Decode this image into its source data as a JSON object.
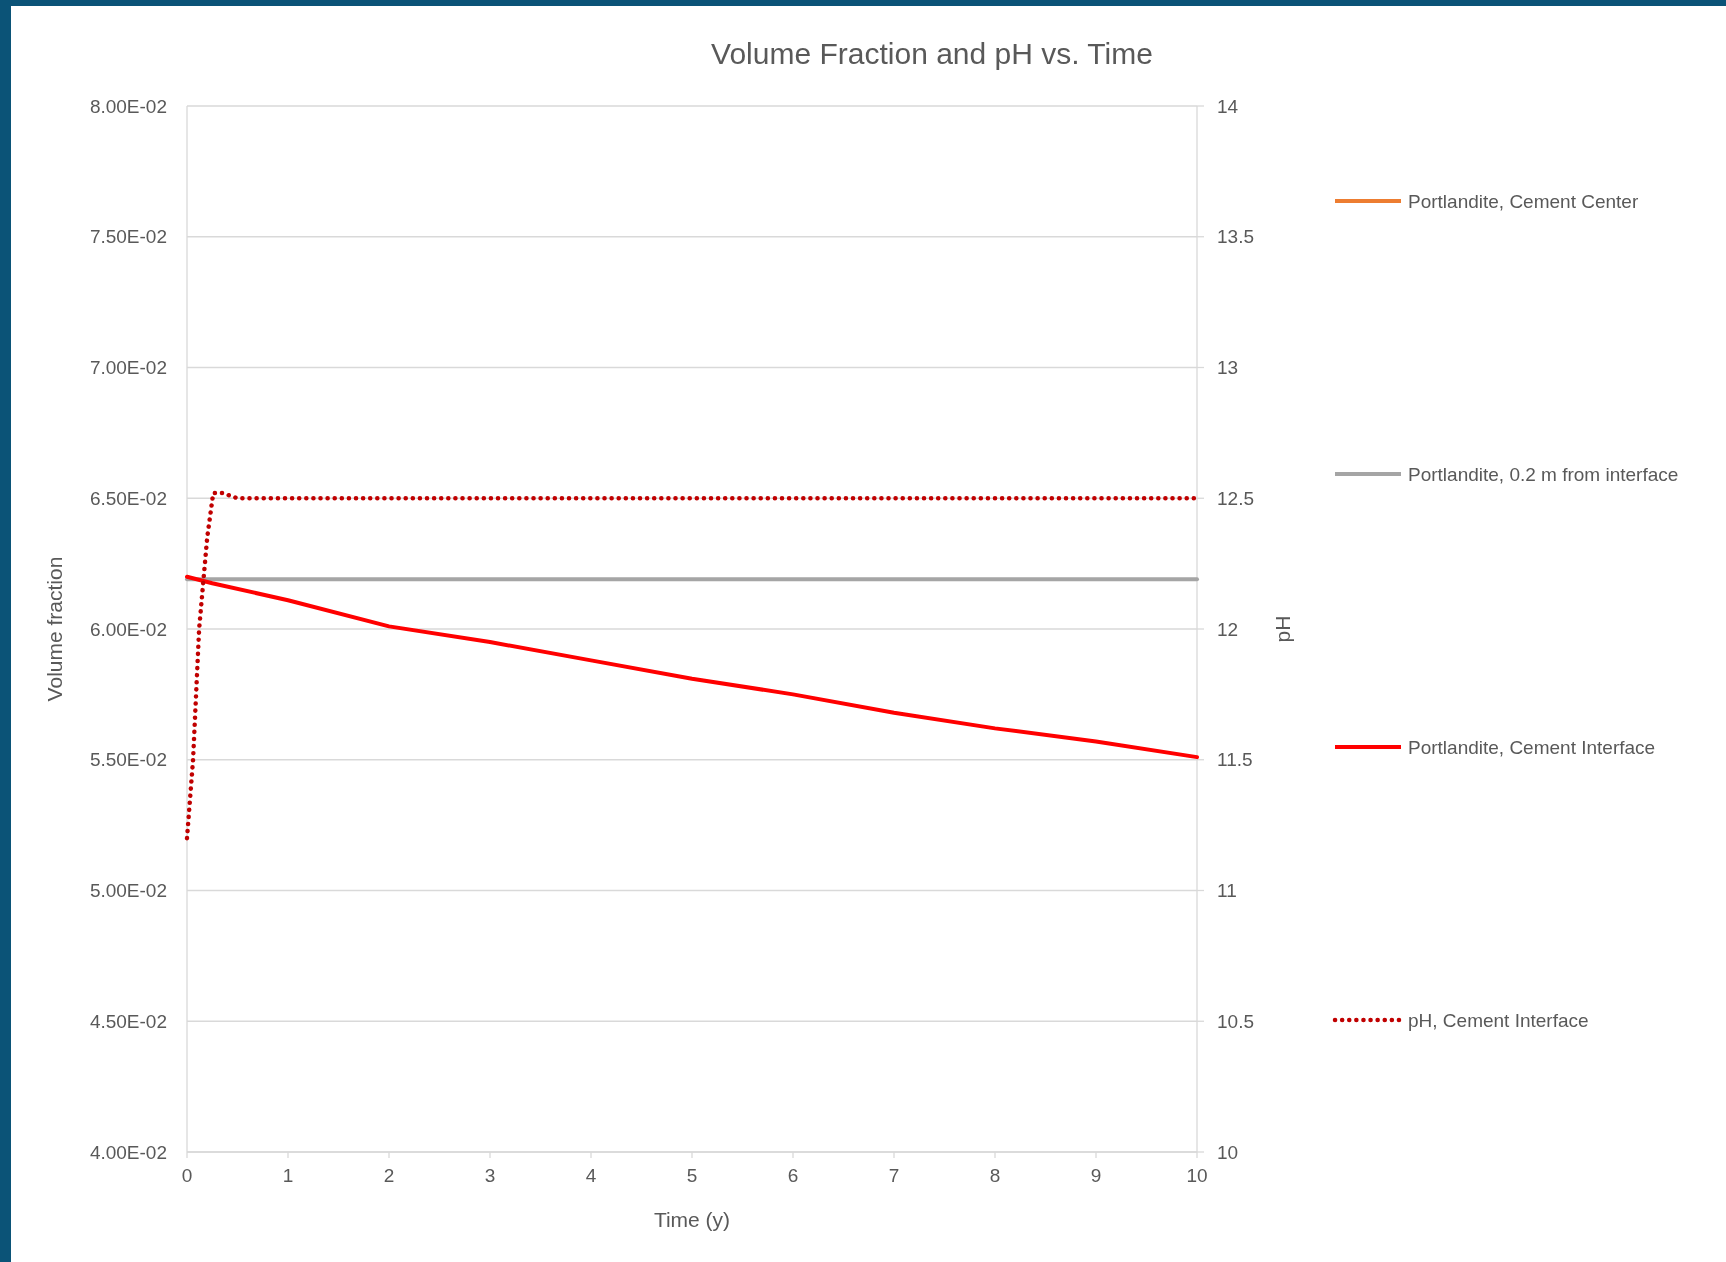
{
  "chart_data": {
    "type": "line",
    "title": "Volume Fraction and pH vs. Time",
    "xlabel": "Time (y)",
    "ylabel": "Volume fraction",
    "y2label": "pH",
    "xlim": [
      0,
      10
    ],
    "xticks": [
      0,
      1,
      2,
      3,
      4,
      5,
      6,
      7,
      8,
      9,
      10
    ],
    "ylim": [
      0.04,
      0.08
    ],
    "yticks": [
      {
        "value": 0.04,
        "label": "4.00E-02"
      },
      {
        "value": 0.045,
        "label": "4.50E-02"
      },
      {
        "value": 0.05,
        "label": "5.00E-02"
      },
      {
        "value": 0.055,
        "label": "5.50E-02"
      },
      {
        "value": 0.06,
        "label": "6.00E-02"
      },
      {
        "value": 0.065,
        "label": "6.50E-02"
      },
      {
        "value": 0.07,
        "label": "7.00E-02"
      },
      {
        "value": 0.075,
        "label": "7.50E-02"
      },
      {
        "value": 0.08,
        "label": "8.00E-02"
      }
    ],
    "y2lim": [
      10,
      14
    ],
    "y2ticks": [
      10,
      10.5,
      11,
      11.5,
      12,
      12.5,
      13,
      13.5,
      14
    ],
    "grid": "y",
    "legend": "right",
    "series": [
      {
        "name": "Portlandite, Cement Center",
        "color": "#ed7d31",
        "line_style": "solid"
      },
      {
        "name": "Portlandite, 0.2 m from interface",
        "color": "#a5a5a5",
        "line_style": "solid",
        "x": [
          0,
          10
        ],
        "values": [
          0.0619,
          0.0619
        ]
      },
      {
        "name": "Portlandite, Cement Interface",
        "color": "#ff0000",
        "line_style": "solid",
        "x": [
          0,
          0.25,
          1,
          2,
          3,
          4,
          5,
          6,
          7,
          8,
          9,
          10
        ],
        "values": [
          0.062,
          0.06175,
          0.0611,
          0.0601,
          0.0595,
          0.0588,
          0.0581,
          0.0575,
          0.0568,
          0.0562,
          0.0557,
          0.0551
        ]
      },
      {
        "name": "pH, Cement Interface",
        "color": "#c00000",
        "line_style": "dotted",
        "axis": "y2",
        "x": [
          0,
          0.06,
          0.12,
          0.2,
          0.26,
          0.35,
          0.5,
          10
        ],
        "values": [
          11.2,
          11.5,
          12.0,
          12.35,
          12.52,
          12.52,
          12.5,
          12.5
        ]
      }
    ]
  }
}
